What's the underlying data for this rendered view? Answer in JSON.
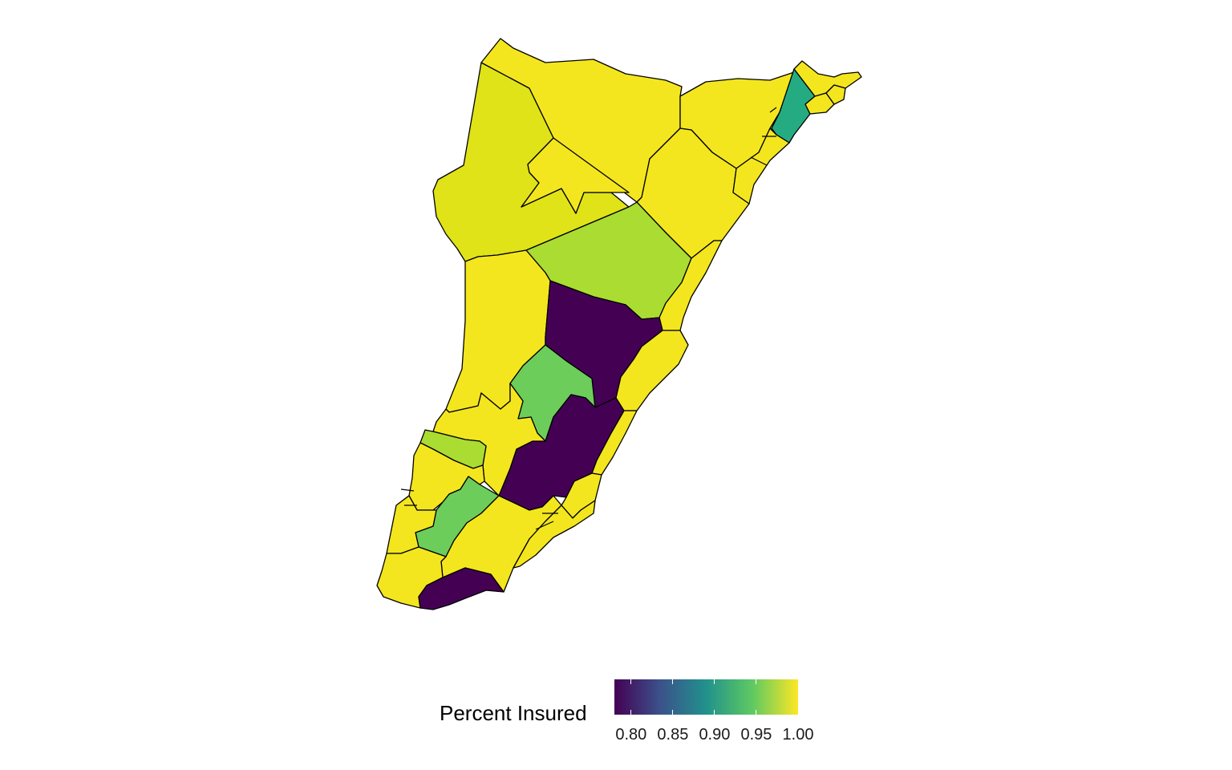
{
  "legend": {
    "title": "Percent Insured",
    "range": [
      0.78,
      1.0
    ],
    "palette": [
      "#440154",
      "#3b528b",
      "#21918c",
      "#5ec962",
      "#fde725"
    ],
    "ticks": [
      {
        "value": 0.8,
        "label": "0.80"
      },
      {
        "value": 0.85,
        "label": "0.85"
      },
      {
        "value": 0.9,
        "label": "0.90"
      },
      {
        "value": 0.95,
        "label": "0.95"
      },
      {
        "value": 1.0,
        "label": "1.00"
      }
    ]
  },
  "map": {
    "region_count": 30,
    "fill_colors": {
      "high": "#f4e61e",
      "high_alt": "#dfe318",
      "mid_high": "#aadc32",
      "mid": "#6ccd5a",
      "teal": "#25ab82",
      "low": "#440154"
    },
    "border_color": "#000000"
  }
}
